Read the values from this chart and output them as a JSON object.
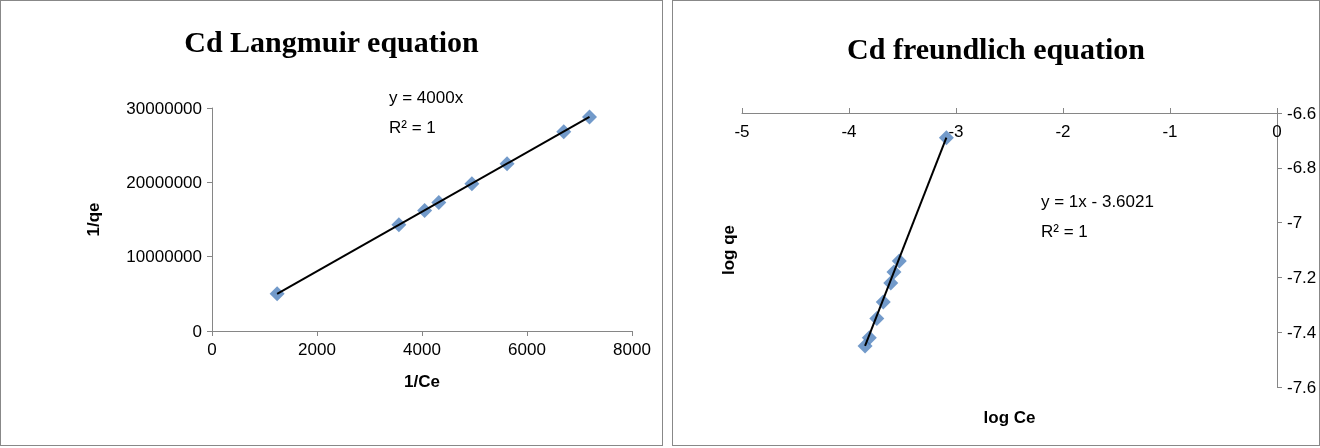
{
  "chart_data": [
    {
      "type": "scatter",
      "title": "Cd Langmuir equation",
      "xlabel": "1/Ce",
      "ylabel": "1/qe",
      "annotations": [
        "y = 4000x",
        "R² = 1"
      ],
      "x": [
        1240,
        3560,
        4050,
        4320,
        4950,
        5620,
        6700,
        7190
      ],
      "series": [
        {
          "type": "scatter",
          "marker": "diamond",
          "color": "#4f81bd",
          "values": [
            5000000,
            14300000,
            16200000,
            17300000,
            19800000,
            22500000,
            26800000,
            28800000
          ]
        },
        {
          "type": "line",
          "marker": "none",
          "line_style": "solid",
          "color": "#000000",
          "x": [
            1240,
            7190
          ],
          "values": [
            5000000,
            28800000
          ]
        }
      ],
      "xlim": [
        0,
        8000
      ],
      "xticks": [
        0,
        2000,
        4000,
        6000,
        8000
      ],
      "ylim": [
        0,
        30000000
      ],
      "yticks": [
        0,
        10000000,
        20000000,
        30000000
      ],
      "grid": false
    },
    {
      "type": "scatter",
      "title": "Cd freundlich equation",
      "xlabel": "log Ce",
      "ylabel": "log qe",
      "annotations": [
        "y = 1x - 3.6021",
        "R² = 1"
      ],
      "x": [
        -3.85,
        -3.81,
        -3.74,
        -3.68,
        -3.61,
        -3.58,
        -3.53,
        -3.09
      ],
      "series": [
        {
          "type": "scatter",
          "marker": "diamond",
          "color": "#4f81bd",
          "values": [
            -7.45,
            -7.42,
            -7.35,
            -7.29,
            -7.22,
            -7.18,
            -7.14,
            -6.69
          ]
        },
        {
          "type": "line",
          "marker": "none",
          "line_style": "solid",
          "color": "#000000",
          "x": [
            -3.85,
            -3.09
          ],
          "values": [
            -7.45,
            -6.69
          ]
        }
      ],
      "xlim": [
        -5,
        0
      ],
      "xticks": [
        -5,
        -4,
        -3,
        -2,
        -1,
        0
      ],
      "ylim": [
        -7.6,
        -6.6
      ],
      "yticks": [
        -7.6,
        -7.4,
        -7.2,
        -7,
        -6.8,
        -6.6
      ],
      "grid": false
    }
  ]
}
